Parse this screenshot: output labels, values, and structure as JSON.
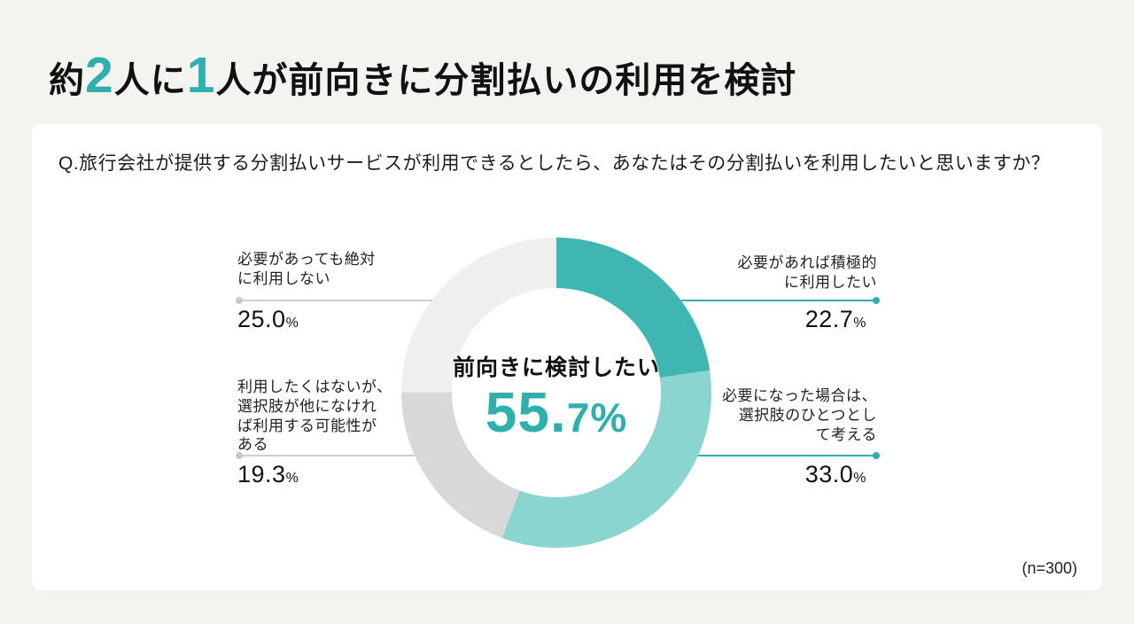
{
  "title": {
    "prefix": "約",
    "num1": "2",
    "mid1": "人に",
    "num2": "1",
    "mid2": "人",
    "suffix": "が前向きに分割払いの利用を検討"
  },
  "question": "Q.旅行会社が提供する分割払いサービスが利用できるとしたら、あなたはその分割払いを利用したいと思いますか？",
  "sample_size": "(n=300)",
  "colors": {
    "accent_teal": "#2fb0ab",
    "segment_strong_teal": "#3fb6b1",
    "segment_soft_teal": "#8bd5d1",
    "segment_gray": "#d8d8d8",
    "segment_light_gray": "#efefee",
    "leader_line_left": "#cfcfcf",
    "leader_line_right": "#35b1ad",
    "card_background": "#ffffff",
    "page_background": "#f3f3f0"
  },
  "chart_data": {
    "type": "pie",
    "subtype": "donut",
    "title": "約2人に1人が前向きに分割払いの利用を検討",
    "sample_n": 300,
    "start_angle_deg": -90,
    "direction": "clockwise",
    "center_label": "前向きに検討したい",
    "center_value": 55.7,
    "center_value_big": "55.",
    "center_value_small": "7%",
    "segments": [
      {
        "label": "必要があれば積極的に利用したい",
        "value": 22.7,
        "color": "#3fb6b1"
      },
      {
        "label": "必要になった場合は、選択肢のひとつとして考える",
        "value": 33.0,
        "color": "#8bd5d1"
      },
      {
        "label": "利用したくはないが、選択肢が他になければ利用する可能性がある",
        "value": 19.3,
        "color": "#d8d8d8"
      },
      {
        "label": "必要があっても絶対に利用しない",
        "value": 25.0,
        "color": "#efefee"
      }
    ],
    "callouts": {
      "right_top": {
        "label": "必要があれば積極的\nに利用したい",
        "value": "22.7",
        "unit": "%"
      },
      "right_bottom": {
        "label": "必要になった場合は、\n選択肢のひとつとし\nて考える",
        "value": "33.0",
        "unit": "%"
      },
      "left_top": {
        "label": "必要があっても絶対\nに利用しない",
        "value": "25.0",
        "unit": "%"
      },
      "left_bottom": {
        "label": "利用したくはないが、\n選択肢が他になけれ\nば利用する可能性が\nある",
        "value": "19.3",
        "unit": "%"
      }
    }
  }
}
